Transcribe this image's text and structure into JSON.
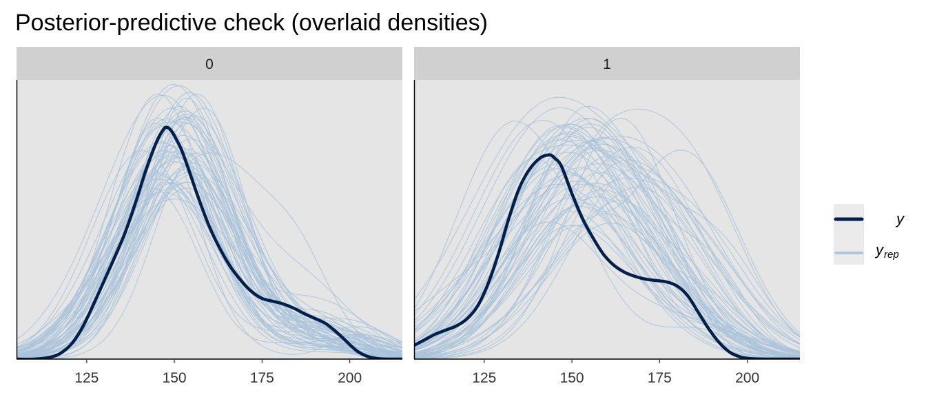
{
  "title": "Posterior-predictive check (overlaid densities)",
  "colors": {
    "y": "#011f4b",
    "yrep": "#a9c3db",
    "panel_bg": "#e5e5e5",
    "strip_bg": "#d0d0d0",
    "legend_key_bg": "#ebebeb"
  },
  "legend": {
    "position": "right",
    "items": [
      {
        "key": "y",
        "label": "y",
        "sub": ""
      },
      {
        "key": "yrep",
        "label": "y",
        "sub": "rep"
      }
    ]
  },
  "chart_data": [
    {
      "type": "line",
      "facet": "0",
      "x_ticks": [
        125,
        150,
        175,
        200
      ],
      "x_tick_labels": [
        "125",
        "150",
        "175",
        "200"
      ],
      "xlim": [
        105,
        215
      ],
      "ylim": [
        0,
        1
      ],
      "y_ticks_shown": false,
      "series": [
        {
          "key": "y",
          "x": [
            105,
            110,
            115,
            118,
            121,
            124,
            127,
            130,
            133,
            136,
            139,
            142,
            145,
            147,
            148,
            149,
            150,
            152,
            154,
            157,
            160,
            163,
            166,
            169,
            172,
            175,
            178,
            181,
            184,
            187,
            190,
            193,
            196,
            199,
            202,
            205,
            208,
            211,
            215
          ],
          "y": [
            0.0,
            0.0,
            0.008,
            0.025,
            0.06,
            0.12,
            0.2,
            0.285,
            0.37,
            0.46,
            0.57,
            0.69,
            0.79,
            0.835,
            0.84,
            0.83,
            0.81,
            0.76,
            0.69,
            0.58,
            0.48,
            0.4,
            0.335,
            0.285,
            0.245,
            0.22,
            0.21,
            0.2,
            0.185,
            0.165,
            0.148,
            0.13,
            0.1,
            0.065,
            0.03,
            0.01,
            0.002,
            0.0,
            0.0
          ]
        }
      ],
      "replicates": {
        "count": 60,
        "peak_range": [
          0.58,
          1.0
        ],
        "mode_range": [
          144,
          156
        ]
      }
    },
    {
      "type": "line",
      "facet": "1",
      "x_ticks": [
        125,
        150,
        175,
        200
      ],
      "x_tick_labels": [
        "125",
        "150",
        "175",
        "200"
      ],
      "xlim": [
        105,
        215
      ],
      "ylim": [
        0,
        1
      ],
      "y_ticks_shown": false,
      "series": [
        {
          "key": "y",
          "x": [
            105,
            108,
            111,
            114,
            117,
            120,
            123,
            126,
            129,
            132,
            135,
            138,
            141,
            143,
            144,
            145,
            147,
            150,
            153,
            156,
            159,
            162,
            165,
            168,
            171,
            174,
            177,
            180,
            183,
            186,
            189,
            192,
            195,
            198,
            201,
            205,
            210,
            215
          ],
          "y": [
            0.05,
            0.07,
            0.09,
            0.105,
            0.12,
            0.145,
            0.19,
            0.27,
            0.38,
            0.51,
            0.62,
            0.69,
            0.73,
            0.74,
            0.74,
            0.73,
            0.7,
            0.6,
            0.51,
            0.44,
            0.38,
            0.34,
            0.315,
            0.3,
            0.29,
            0.285,
            0.28,
            0.265,
            0.23,
            0.17,
            0.11,
            0.06,
            0.025,
            0.008,
            0.002,
            0.0,
            0.0,
            0.0
          ]
        }
      ],
      "replicates": {
        "count": 60,
        "peak_range": [
          0.48,
          0.95
        ],
        "mode_range": [
          140,
          170
        ]
      }
    }
  ]
}
